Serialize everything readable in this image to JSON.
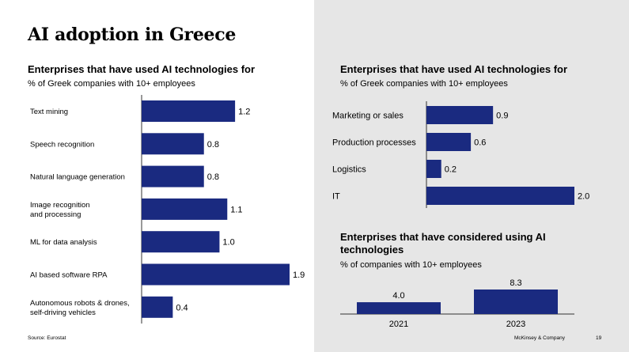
{
  "page": {
    "title": "AI adoption in Greece",
    "source": "Source: Eurostat",
    "brand": "McKinsey & Company",
    "page_number": "19"
  },
  "colors": {
    "bar": "#1a2a80",
    "right_panel_bg": "#e6e6e6",
    "axis": "#333333"
  },
  "chart_data": [
    {
      "type": "bar",
      "orientation": "horizontal",
      "title": "Enterprises that have used AI technologies for",
      "subtitle": "% of Greek companies with 10+ employees",
      "categories": [
        [
          "Text mining"
        ],
        [
          "Speech recognition"
        ],
        [
          "Natural language generation"
        ],
        [
          "Image recognition",
          "and processing"
        ],
        [
          "ML for data analysis"
        ],
        [
          "AI based software RPA"
        ],
        [
          "Autonomous robots & drones,",
          "self-driving vehicles"
        ]
      ],
      "values": [
        1.2,
        0.8,
        0.8,
        1.1,
        1.0,
        1.9,
        0.4
      ],
      "value_labels": [
        "1.2",
        "0.8",
        "0.8",
        "1.1",
        "1.0",
        "1.9",
        "0.4"
      ],
      "xlim": [
        0,
        2.0
      ]
    },
    {
      "type": "bar",
      "orientation": "horizontal",
      "title": "Enterprises that have used AI technologies for",
      "subtitle": "% of Greek companies with 10+ employees",
      "categories": [
        [
          "Marketing or sales"
        ],
        [
          "Production processes"
        ],
        [
          "Logistics"
        ],
        [
          "IT"
        ]
      ],
      "values": [
        0.9,
        0.6,
        0.2,
        2.0
      ],
      "value_labels": [
        "0.9",
        "0.6",
        "0.2",
        "2.0"
      ],
      "xlim": [
        0,
        2.0
      ]
    },
    {
      "type": "bar",
      "orientation": "vertical",
      "title": "Enterprises that have considered using AI technologies",
      "subtitle": "% of companies with 10+ employees",
      "categories": [
        "2021",
        "2023"
      ],
      "values": [
        4.0,
        8.3
      ],
      "value_labels": [
        "4.0",
        "8.3"
      ],
      "ylim": [
        0,
        8.3
      ]
    }
  ]
}
